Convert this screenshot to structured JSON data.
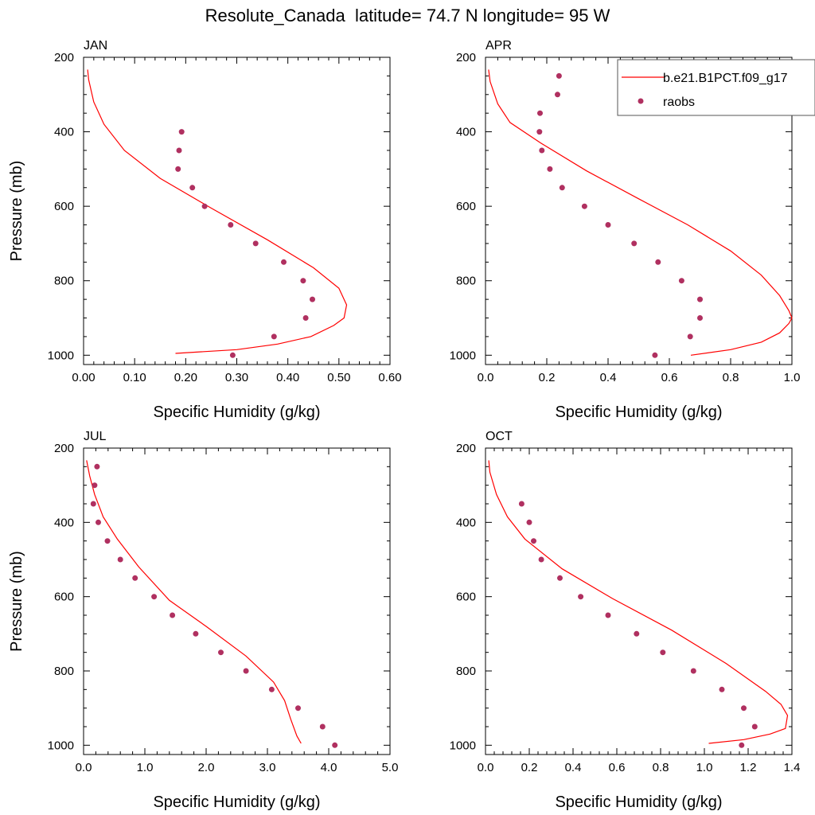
{
  "figure_title": "Resolute_Canada  latitude= 74.7 N longitude= 95 W",
  "legend": {
    "model_label": "b.e21.B1PCT.f09_g17",
    "obs_label": "raobs"
  },
  "colors": {
    "model_line": "#ff0000",
    "obs_marker": "#b03060"
  },
  "chart_data": [
    {
      "type": "line",
      "panel_title": "JAN",
      "xlabel": "Specific Humidity (g/kg)",
      "ylabel": "Pressure (mb)",
      "xlim": [
        0,
        0.6
      ],
      "ylim": [
        1025,
        200
      ],
      "xticks": [
        0,
        0.1,
        0.2,
        0.3,
        0.4,
        0.5,
        0.6
      ],
      "xtick_labels": [
        "0.00",
        "0.10",
        "0.20",
        "0.30",
        "0.40",
        "0.50",
        "0.60"
      ],
      "yticks": [
        200,
        400,
        600,
        800,
        1000
      ],
      "ytick_labels": [
        "200",
        "400",
        "600",
        "800",
        "1000"
      ],
      "series": [
        {
          "name": "b.e21.B1PCT.f09_g17",
          "kind": "line",
          "points": [
            [
              0.18,
              995
            ],
            [
              0.3,
              985
            ],
            [
              0.38,
              970
            ],
            [
              0.445,
              950
            ],
            [
              0.49,
              920
            ],
            [
              0.51,
              900
            ],
            [
              0.515,
              865
            ],
            [
              0.5,
              820
            ],
            [
              0.45,
              765
            ],
            [
              0.36,
              690
            ],
            [
              0.25,
              605
            ],
            [
              0.15,
              525
            ],
            [
              0.08,
              450
            ],
            [
              0.04,
              380
            ],
            [
              0.02,
              320
            ],
            [
              0.01,
              260
            ],
            [
              0.008,
              233
            ]
          ]
        },
        {
          "name": "raobs",
          "kind": "scatter",
          "points": [
            [
              0.192,
              400
            ],
            [
              0.187,
              450
            ],
            [
              0.185,
              500
            ],
            [
              0.213,
              550
            ],
            [
              0.237,
              600
            ],
            [
              0.288,
              650
            ],
            [
              0.337,
              700
            ],
            [
              0.392,
              750
            ],
            [
              0.43,
              800
            ],
            [
              0.448,
              850
            ],
            [
              0.435,
              900
            ],
            [
              0.373,
              950
            ],
            [
              0.292,
              1000
            ]
          ]
        }
      ]
    },
    {
      "type": "line",
      "panel_title": "APR",
      "xlabel": "Specific Humidity (g/kg)",
      "ylabel": "",
      "xlim": [
        0,
        1.0
      ],
      "ylim": [
        1025,
        200
      ],
      "xticks": [
        0,
        0.2,
        0.4,
        0.6,
        0.8,
        1.0
      ],
      "xtick_labels": [
        "0.0",
        "0.2",
        "0.4",
        "0.6",
        "0.8",
        "1.0"
      ],
      "yticks": [
        200,
        400,
        600,
        800,
        1000
      ],
      "ytick_labels": [
        "200",
        "400",
        "600",
        "800",
        "1000"
      ],
      "series": [
        {
          "name": "b.e21.B1PCT.f09_g17",
          "kind": "line",
          "points": [
            [
              0.67,
              1000
            ],
            [
              0.8,
              985
            ],
            [
              0.9,
              965
            ],
            [
              0.96,
              940
            ],
            [
              0.99,
              915
            ],
            [
              1.0,
              900
            ],
            [
              0.99,
              880
            ],
            [
              0.96,
              840
            ],
            [
              0.9,
              785
            ],
            [
              0.8,
              720
            ],
            [
              0.66,
              650
            ],
            [
              0.5,
              580
            ],
            [
              0.33,
              505
            ],
            [
              0.18,
              430
            ],
            [
              0.08,
              375
            ],
            [
              0.04,
              325
            ],
            [
              0.015,
              265
            ],
            [
              0.01,
              233
            ]
          ]
        },
        {
          "name": "raobs",
          "kind": "scatter",
          "points": [
            [
              0.24,
              250
            ],
            [
              0.235,
              300
            ],
            [
              0.178,
              350
            ],
            [
              0.176,
              400
            ],
            [
              0.184,
              450
            ],
            [
              0.21,
              500
            ],
            [
              0.25,
              550
            ],
            [
              0.323,
              600
            ],
            [
              0.4,
              650
            ],
            [
              0.485,
              700
            ],
            [
              0.563,
              750
            ],
            [
              0.64,
              800
            ],
            [
              0.7,
              850
            ],
            [
              0.7,
              900
            ],
            [
              0.668,
              950
            ],
            [
              0.553,
              1000
            ]
          ]
        }
      ]
    },
    {
      "type": "line",
      "panel_title": "JUL",
      "xlabel": "Specific Humidity (g/kg)",
      "ylabel": "Pressure (mb)",
      "xlim": [
        0,
        5.0
      ],
      "ylim": [
        1025,
        200
      ],
      "xticks": [
        0,
        1,
        2,
        3,
        4,
        5
      ],
      "xtick_labels": [
        "0.0",
        "1.0",
        "2.0",
        "3.0",
        "4.0",
        "5.0"
      ],
      "yticks": [
        200,
        400,
        600,
        800,
        1000
      ],
      "ytick_labels": [
        "200",
        "400",
        "600",
        "800",
        "1000"
      ],
      "series": [
        {
          "name": "b.e21.B1PCT.f09_g17",
          "kind": "line",
          "points": [
            [
              3.55,
              995
            ],
            [
              3.48,
              975
            ],
            [
              3.38,
              930
            ],
            [
              3.28,
              880
            ],
            [
              3.1,
              830
            ],
            [
              2.65,
              760
            ],
            [
              2.0,
              680
            ],
            [
              1.4,
              610
            ],
            [
              0.9,
              520
            ],
            [
              0.55,
              445
            ],
            [
              0.32,
              385
            ],
            [
              0.18,
              325
            ],
            [
              0.1,
              275
            ],
            [
              0.05,
              233
            ]
          ]
        },
        {
          "name": "raobs",
          "kind": "scatter",
          "points": [
            [
              0.22,
              250
            ],
            [
              0.18,
              300
            ],
            [
              0.16,
              350
            ],
            [
              0.24,
              400
            ],
            [
              0.39,
              450
            ],
            [
              0.6,
              500
            ],
            [
              0.84,
              550
            ],
            [
              1.15,
              600
            ],
            [
              1.45,
              650
            ],
            [
              1.83,
              700
            ],
            [
              2.24,
              750
            ],
            [
              2.65,
              800
            ],
            [
              3.07,
              850
            ],
            [
              3.5,
              900
            ],
            [
              3.9,
              950
            ],
            [
              4.1,
              1000
            ]
          ]
        }
      ]
    },
    {
      "type": "line",
      "panel_title": "OCT",
      "xlabel": "Specific Humidity (g/kg)",
      "ylabel": "",
      "xlim": [
        0,
        1.4
      ],
      "ylim": [
        1025,
        200
      ],
      "xticks": [
        0,
        0.2,
        0.4,
        0.6,
        0.8,
        1.0,
        1.2,
        1.4
      ],
      "xtick_labels": [
        "0.0",
        "0.2",
        "0.4",
        "0.6",
        "0.8",
        "1.0",
        "1.2",
        "1.4"
      ],
      "yticks": [
        200,
        400,
        600,
        800,
        1000
      ],
      "ytick_labels": [
        "200",
        "400",
        "600",
        "800",
        "1000"
      ],
      "series": [
        {
          "name": "b.e21.B1PCT.f09_g17",
          "kind": "line",
          "points": [
            [
              1.02,
              995
            ],
            [
              1.18,
              985
            ],
            [
              1.3,
              970
            ],
            [
              1.37,
              955
            ],
            [
              1.38,
              920
            ],
            [
              1.35,
              890
            ],
            [
              1.28,
              855
            ],
            [
              1.1,
              780
            ],
            [
              0.85,
              690
            ],
            [
              0.58,
              605
            ],
            [
              0.35,
              525
            ],
            [
              0.18,
              445
            ],
            [
              0.1,
              385
            ],
            [
              0.05,
              325
            ],
            [
              0.02,
              265
            ],
            [
              0.015,
              233
            ]
          ]
        },
        {
          "name": "raobs",
          "kind": "scatter",
          "points": [
            [
              0.165,
              350
            ],
            [
              0.2,
              400
            ],
            [
              0.22,
              450
            ],
            [
              0.255,
              500
            ],
            [
              0.34,
              550
            ],
            [
              0.435,
              600
            ],
            [
              0.56,
              650
            ],
            [
              0.69,
              700
            ],
            [
              0.81,
              750
            ],
            [
              0.95,
              800
            ],
            [
              1.08,
              850
            ],
            [
              1.18,
              900
            ],
            [
              1.23,
              950
            ],
            [
              1.17,
              1000
            ]
          ]
        }
      ]
    }
  ]
}
